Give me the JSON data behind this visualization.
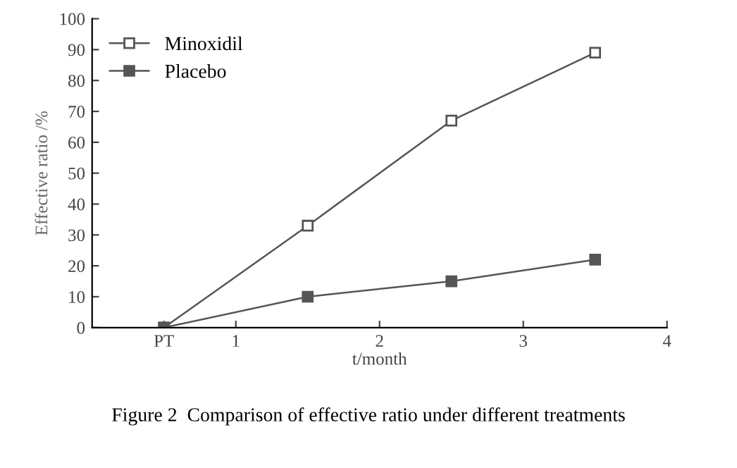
{
  "chart_data": {
    "type": "line",
    "xlabel": "t/month",
    "ylabel": "Effective ratio /%",
    "x": [
      0.5,
      1.5,
      2.5,
      3.5
    ],
    "series": [
      {
        "name": "Minoxidil",
        "color": "#555555",
        "values": [
          0,
          33,
          67,
          89
        ],
        "marker": "square"
      },
      {
        "name": "Placebo",
        "color": "#555555",
        "values": [
          0,
          10,
          15,
          22
        ],
        "marker": "square"
      }
    ],
    "xlim": [
      0,
      4
    ],
    "xticks": [
      {
        "value": 0.5,
        "label": "PT"
      },
      1,
      2,
      3,
      4
    ],
    "ylim": [
      0,
      100
    ],
    "yticks": [
      0,
      10,
      20,
      30,
      40,
      50,
      60,
      70,
      80,
      90,
      100
    ],
    "grid": false,
    "legend": "top left",
    "annotations": [
      "Figure 2  Comparison of effective ratio under different treatments"
    ]
  }
}
